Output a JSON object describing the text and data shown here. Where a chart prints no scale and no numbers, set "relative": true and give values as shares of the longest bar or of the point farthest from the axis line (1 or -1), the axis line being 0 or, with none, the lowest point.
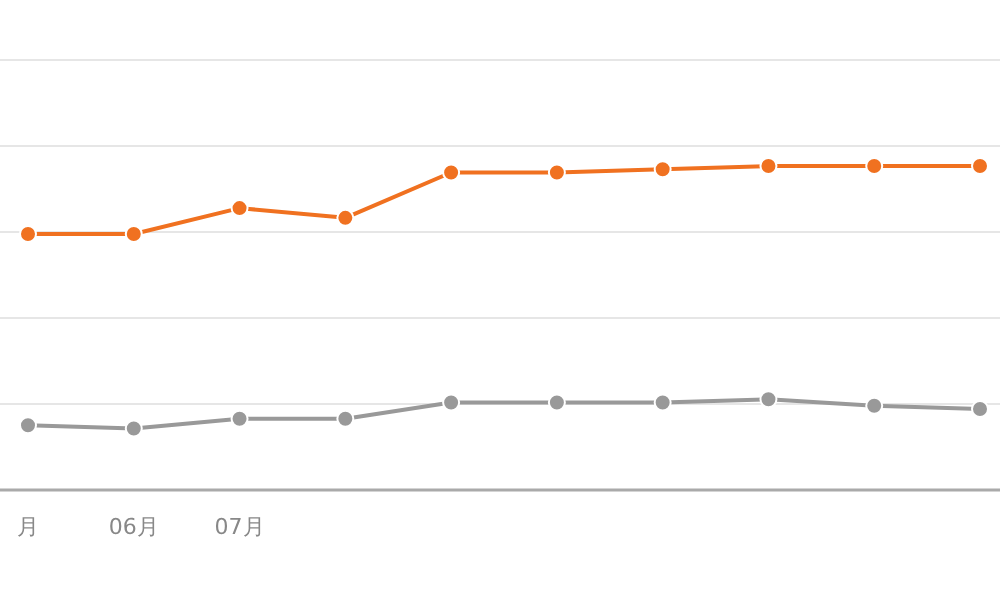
{
  "chart_data": {
    "type": "line",
    "relative": true,
    "categories": [
      "月",
      "06月",
      "07月",
      null,
      null,
      null,
      null,
      null,
      null,
      null
    ],
    "series": [
      {
        "color": "#f07120",
        "values": [
          0.79,
          0.79,
          0.87,
          0.84,
          0.98,
          0.98,
          0.99,
          1,
          1,
          1
        ]
      },
      {
        "color": "#999999",
        "values": [
          0.2,
          0.19,
          0.22,
          0.22,
          0.27,
          0.27,
          0.27,
          0.28,
          0.26,
          0.25
        ]
      }
    ],
    "grid": "y",
    "marker": "circle",
    "line_style": "solid"
  }
}
